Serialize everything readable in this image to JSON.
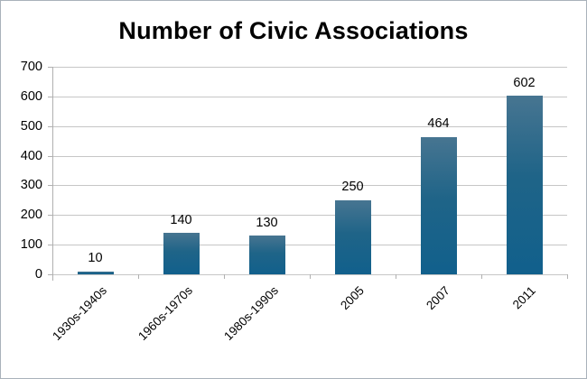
{
  "title": "Number of Civic Associations",
  "colors": {
    "bar_top": "#477591",
    "bar_mid": "#1f6488",
    "bar_bottom": "#11608c",
    "gridline": "#c6c6c6",
    "axis": "#b0b0b0",
    "text": "#000000",
    "background": "#ffffff",
    "border": "#a9b2ba"
  },
  "chart_data": {
    "type": "bar",
    "title": "Number of Civic Associations",
    "categories": [
      "1930s-1940s",
      "1960s-1970s",
      "1980s-1990s",
      "2005",
      "2007",
      "2011"
    ],
    "values": [
      10,
      140,
      130,
      250,
      464,
      602
    ],
    "data_labels": [
      "10",
      "140",
      "130",
      "250",
      "464",
      "602"
    ],
    "xlabel": "",
    "ylabel": "",
    "ylim": [
      0,
      700
    ],
    "yticks": [
      0,
      100,
      200,
      300,
      400,
      500,
      600,
      700
    ],
    "grid": "horizontal",
    "legend": "none",
    "x_label_rotation_deg": 45,
    "bar_color_style": "vertical-gradient-teal"
  }
}
